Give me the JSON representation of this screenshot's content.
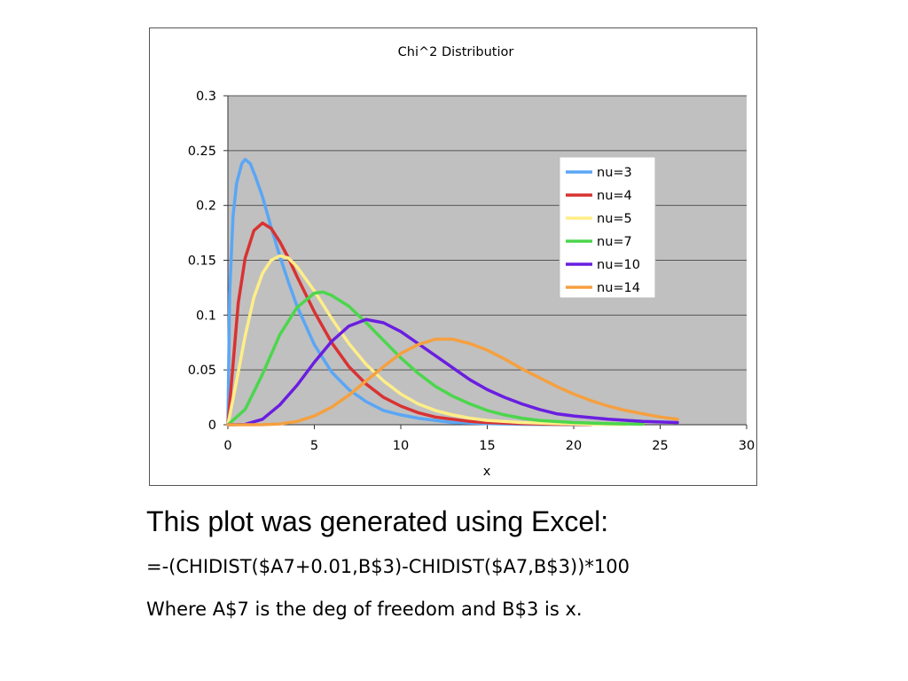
{
  "chart_data": {
    "type": "line",
    "title": "Chi^2 Distributior",
    "xlabel": "x",
    "ylabel": "",
    "xlim": [
      0,
      30
    ],
    "ylim": [
      0,
      0.3
    ],
    "xticks": [
      "0",
      "5",
      "10",
      "15",
      "20",
      "25",
      "30"
    ],
    "yticks": [
      "0",
      "0.05",
      "0.1",
      "0.15",
      "0.2",
      "0.25",
      "0.3"
    ],
    "grid": "horizontal",
    "plot_background": "#c0c0c0",
    "legend_position": "top-right",
    "series": [
      {
        "name": "nu=3",
        "color": "#5aa6f5",
        "points": [
          [
            0,
            0
          ],
          [
            0.1,
            0.12
          ],
          [
            0.3,
            0.19
          ],
          [
            0.5,
            0.22
          ],
          [
            0.8,
            0.238
          ],
          [
            1.0,
            0.242
          ],
          [
            1.3,
            0.238
          ],
          [
            1.6,
            0.226
          ],
          [
            2.0,
            0.208
          ],
          [
            2.5,
            0.18
          ],
          [
            3.0,
            0.154
          ],
          [
            3.5,
            0.13
          ],
          [
            4.0,
            0.108
          ],
          [
            5.0,
            0.073
          ],
          [
            6.0,
            0.048
          ],
          [
            7.0,
            0.032
          ],
          [
            8.0,
            0.021
          ],
          [
            9.0,
            0.013
          ],
          [
            10.0,
            0.009
          ],
          [
            11.0,
            0.006
          ],
          [
            12.0,
            0.004
          ],
          [
            13.0,
            0.002
          ],
          [
            14.0,
            0.0015
          ],
          [
            15.0,
            0.001
          ],
          [
            17.0,
            0.0004
          ],
          [
            19.0,
            0.0002
          ],
          [
            21.0,
            0.0001
          ]
        ]
      },
      {
        "name": "nu=4",
        "color": "#d93232",
        "points": [
          [
            0,
            0
          ],
          [
            0.3,
            0.055
          ],
          [
            0.6,
            0.111
          ],
          [
            1.0,
            0.152
          ],
          [
            1.5,
            0.177
          ],
          [
            2.0,
            0.184
          ],
          [
            2.5,
            0.179
          ],
          [
            3.0,
            0.167
          ],
          [
            3.5,
            0.152
          ],
          [
            4.0,
            0.135
          ],
          [
            5.0,
            0.103
          ],
          [
            6.0,
            0.075
          ],
          [
            7.0,
            0.053
          ],
          [
            8.0,
            0.037
          ],
          [
            9.0,
            0.025
          ],
          [
            10.0,
            0.017
          ],
          [
            11.0,
            0.011
          ],
          [
            12.0,
            0.007
          ],
          [
            13.0,
            0.005
          ],
          [
            14.0,
            0.003
          ],
          [
            15.0,
            0.002
          ],
          [
            17.0,
            0.001
          ],
          [
            19.0,
            0.0004
          ],
          [
            21.0,
            0.0002
          ]
        ]
      },
      {
        "name": "nu=5",
        "color": "#ffee88",
        "points": [
          [
            0,
            0
          ],
          [
            0.5,
            0.04
          ],
          [
            1.0,
            0.081
          ],
          [
            1.5,
            0.116
          ],
          [
            2.0,
            0.138
          ],
          [
            2.5,
            0.15
          ],
          [
            3.0,
            0.154
          ],
          [
            3.5,
            0.152
          ],
          [
            4.0,
            0.144
          ],
          [
            5.0,
            0.122
          ],
          [
            6.0,
            0.097
          ],
          [
            7.0,
            0.074
          ],
          [
            8.0,
            0.055
          ],
          [
            9.0,
            0.04
          ],
          [
            10.0,
            0.028
          ],
          [
            11.0,
            0.019
          ],
          [
            12.0,
            0.013
          ],
          [
            13.0,
            0.009
          ],
          [
            14.0,
            0.006
          ],
          [
            15.0,
            0.004
          ],
          [
            17.0,
            0.002
          ],
          [
            19.0,
            0.001
          ],
          [
            21.0,
            0.0004
          ],
          [
            23.0,
            0.0002
          ]
        ]
      },
      {
        "name": "nu=7",
        "color": "#4cd64c",
        "points": [
          [
            0,
            0
          ],
          [
            1.0,
            0.014
          ],
          [
            2.0,
            0.046
          ],
          [
            3.0,
            0.082
          ],
          [
            4.0,
            0.107
          ],
          [
            5.0,
            0.12
          ],
          [
            5.5,
            0.121
          ],
          [
            6.0,
            0.118
          ],
          [
            7.0,
            0.108
          ],
          [
            8.0,
            0.093
          ],
          [
            9.0,
            0.077
          ],
          [
            10.0,
            0.061
          ],
          [
            11.0,
            0.047
          ],
          [
            12.0,
            0.035
          ],
          [
            13.0,
            0.026
          ],
          [
            14.0,
            0.019
          ],
          [
            15.0,
            0.013
          ],
          [
            16.0,
            0.009
          ],
          [
            17.0,
            0.006
          ],
          [
            18.0,
            0.004
          ],
          [
            20.0,
            0.002
          ],
          [
            22.0,
            0.001
          ],
          [
            24.0,
            0.0005
          ]
        ]
      },
      {
        "name": "nu=10",
        "color": "#6a1ee0",
        "points": [
          [
            0,
            0
          ],
          [
            1.0,
            0.0003
          ],
          [
            2.0,
            0.005
          ],
          [
            3.0,
            0.018
          ],
          [
            4.0,
            0.036
          ],
          [
            5.0,
            0.057
          ],
          [
            6.0,
            0.076
          ],
          [
            7.0,
            0.09
          ],
          [
            8.0,
            0.096
          ],
          [
            9.0,
            0.093
          ],
          [
            10.0,
            0.085
          ],
          [
            11.0,
            0.074
          ],
          [
            12.0,
            0.063
          ],
          [
            13.0,
            0.052
          ],
          [
            14.0,
            0.041
          ],
          [
            15.0,
            0.032
          ],
          [
            16.0,
            0.025
          ],
          [
            17.0,
            0.019
          ],
          [
            18.0,
            0.014
          ],
          [
            19.0,
            0.01
          ],
          [
            20.0,
            0.008
          ],
          [
            22.0,
            0.005
          ],
          [
            24.0,
            0.003
          ],
          [
            26.0,
            0.002
          ]
        ]
      },
      {
        "name": "nu=14",
        "color": "#f5a040",
        "points": [
          [
            0,
            0
          ],
          [
            1.0,
            0.0
          ],
          [
            2.0,
            0.0001
          ],
          [
            3.0,
            0.0007
          ],
          [
            4.0,
            0.003
          ],
          [
            5.0,
            0.008
          ],
          [
            6.0,
            0.016
          ],
          [
            7.0,
            0.027
          ],
          [
            8.0,
            0.04
          ],
          [
            9.0,
            0.053
          ],
          [
            10.0,
            0.065
          ],
          [
            11.0,
            0.073
          ],
          [
            12.0,
            0.078
          ],
          [
            13.0,
            0.078
          ],
          [
            14.0,
            0.074
          ],
          [
            15.0,
            0.068
          ],
          [
            16.0,
            0.06
          ],
          [
            17.0,
            0.051
          ],
          [
            18.0,
            0.043
          ],
          [
            19.0,
            0.035
          ],
          [
            20.0,
            0.028
          ],
          [
            21.0,
            0.022
          ],
          [
            22.0,
            0.017
          ],
          [
            23.0,
            0.013
          ],
          [
            24.0,
            0.01
          ],
          [
            25.0,
            0.007
          ],
          [
            26.0,
            0.005
          ]
        ]
      }
    ]
  },
  "caption": {
    "heading": "This plot was generated using Excel:",
    "formula": "=-(CHIDIST($A7+0.01,B$3)-CHIDIST($A7,B$3))*100",
    "explanation": "Where A$7 is the deg of freedom and B$3 is x."
  }
}
